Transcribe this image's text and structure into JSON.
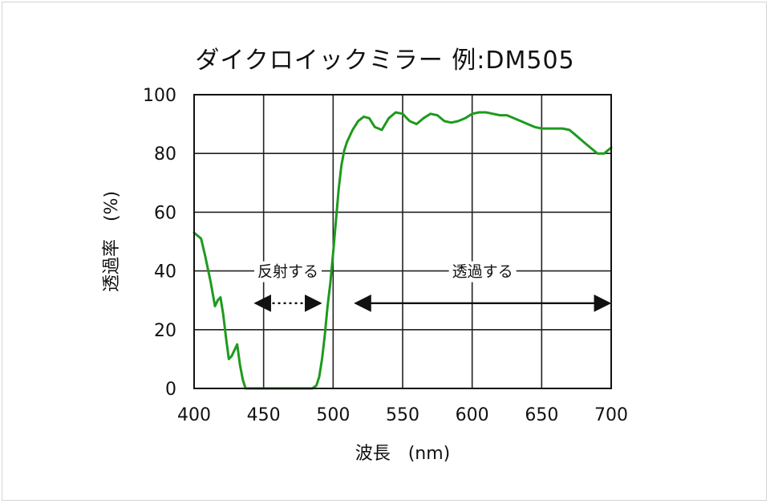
{
  "chart_data": {
    "type": "line",
    "title": "ダイクロイックミラー 例:DM505",
    "xlabel": "波長　(nm)",
    "ylabel": "透過率　(%)",
    "xlim": [
      400,
      700
    ],
    "ylim": [
      0,
      100
    ],
    "xticks": [
      400,
      450,
      500,
      550,
      600,
      650,
      700
    ],
    "yticks": [
      0,
      20,
      40,
      60,
      80,
      100
    ],
    "grid": true,
    "series": [
      {
        "color": "#1e9a1e",
        "x": [
          400,
          405,
          408,
          412,
          415,
          417,
          419,
          421,
          423,
          425,
          427,
          429,
          431,
          433,
          435,
          437,
          439,
          441,
          450,
          460,
          470,
          480,
          485,
          488,
          490,
          492,
          494,
          496,
          498,
          500,
          502,
          504,
          506,
          508,
          510,
          514,
          518,
          522,
          526,
          530,
          535,
          540,
          545,
          550,
          555,
          560,
          565,
          570,
          575,
          580,
          585,
          590,
          595,
          600,
          605,
          610,
          615,
          620,
          625,
          630,
          635,
          640,
          645,
          650,
          655,
          660,
          665,
          670,
          675,
          680,
          685,
          690,
          695,
          700
        ],
        "y": [
          53,
          51,
          45,
          36,
          28,
          30,
          31,
          25,
          17,
          10,
          11,
          13,
          15,
          8,
          3,
          0,
          0,
          0,
          0,
          0,
          0,
          0,
          0,
          1,
          4,
          10,
          18,
          28,
          36,
          46,
          57,
          68,
          76,
          81,
          84,
          88,
          91,
          92.5,
          92,
          89,
          88,
          92,
          94,
          93.5,
          91,
          90,
          92,
          93.5,
          93,
          91,
          90.5,
          91,
          92,
          93.5,
          94,
          94,
          93.5,
          93,
          93,
          92,
          91,
          90,
          89,
          88.5,
          88.5,
          88.5,
          88.5,
          88,
          86,
          84,
          82,
          80,
          80,
          82
        ]
      }
    ],
    "annotations": [
      {
        "text": "反射する",
        "from": 443,
        "to": 492,
        "style": "dotted"
      },
      {
        "text": "透過する",
        "from": 515,
        "to": 700,
        "style": "solid"
      }
    ]
  }
}
